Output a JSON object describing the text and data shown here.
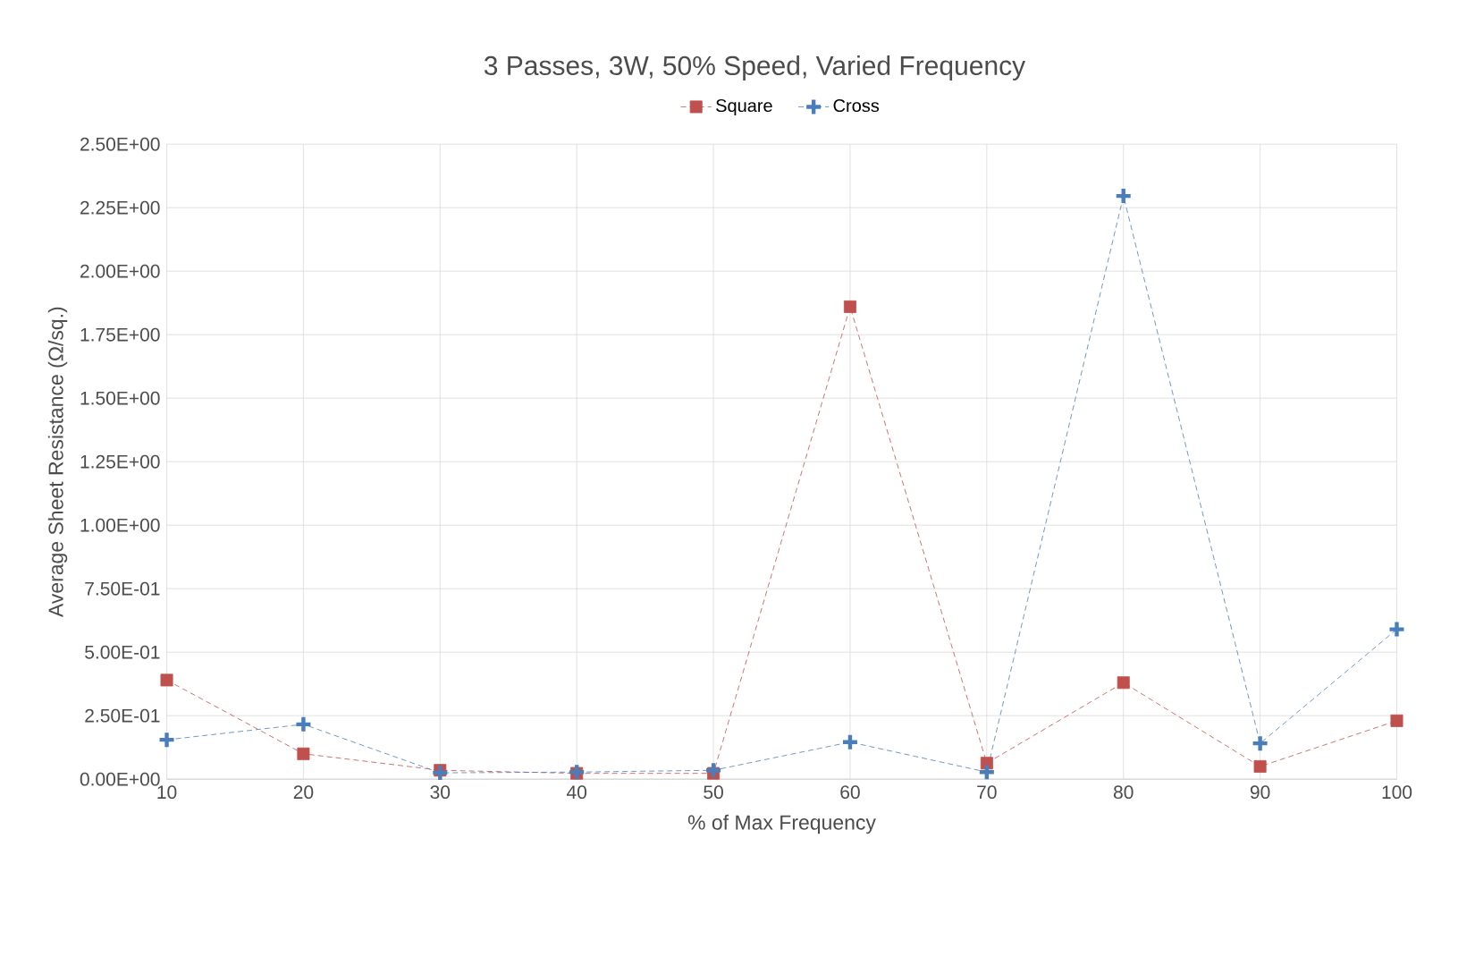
{
  "chart_data": {
    "type": "line",
    "title": "3 Passes, 3W, 50% Speed, Varied Frequency",
    "xlabel": "% of Max Frequency",
    "ylabel": "Average Sheet Resistance (Ω/sq.)",
    "x": [
      10,
      20,
      30,
      40,
      50,
      60,
      70,
      80,
      90,
      100
    ],
    "series": [
      {
        "name": "Square",
        "color": "#c0504d",
        "marker": "square",
        "values": [
          0.39,
          0.1,
          0.035,
          0.023,
          0.023,
          1.86,
          0.063,
          0.38,
          0.05,
          0.23
        ]
      },
      {
        "name": "Cross",
        "color": "#4a7ebb",
        "marker": "cross",
        "values": [
          0.155,
          0.216,
          0.025,
          0.028,
          0.035,
          0.146,
          0.028,
          2.296,
          0.141,
          0.59
        ]
      }
    ],
    "line_style": "dashed",
    "grid": true,
    "legend": "top",
    "xlim": [
      10,
      100
    ],
    "xticks": [
      10,
      20,
      30,
      40,
      50,
      60,
      70,
      80,
      90,
      100
    ],
    "ylim": [
      0,
      2.5
    ],
    "yticks": [
      {
        "value": 0,
        "label": "0.00E+00"
      },
      {
        "value": 0.25,
        "label": "2.50E-01"
      },
      {
        "value": 0.5,
        "label": "5.00E-01"
      },
      {
        "value": 0.75,
        "label": "7.50E-01"
      },
      {
        "value": 1,
        "label": "1.00E+00"
      },
      {
        "value": 1.25,
        "label": "1.25E+00"
      },
      {
        "value": 1.5,
        "label": "1.50E+00"
      },
      {
        "value": 1.75,
        "label": "1.75E+00"
      },
      {
        "value": 2,
        "label": "2.00E+00"
      },
      {
        "value": 2.25,
        "label": "2.25E+00"
      },
      {
        "value": 2.5,
        "label": "2.50E+00"
      }
    ]
  }
}
